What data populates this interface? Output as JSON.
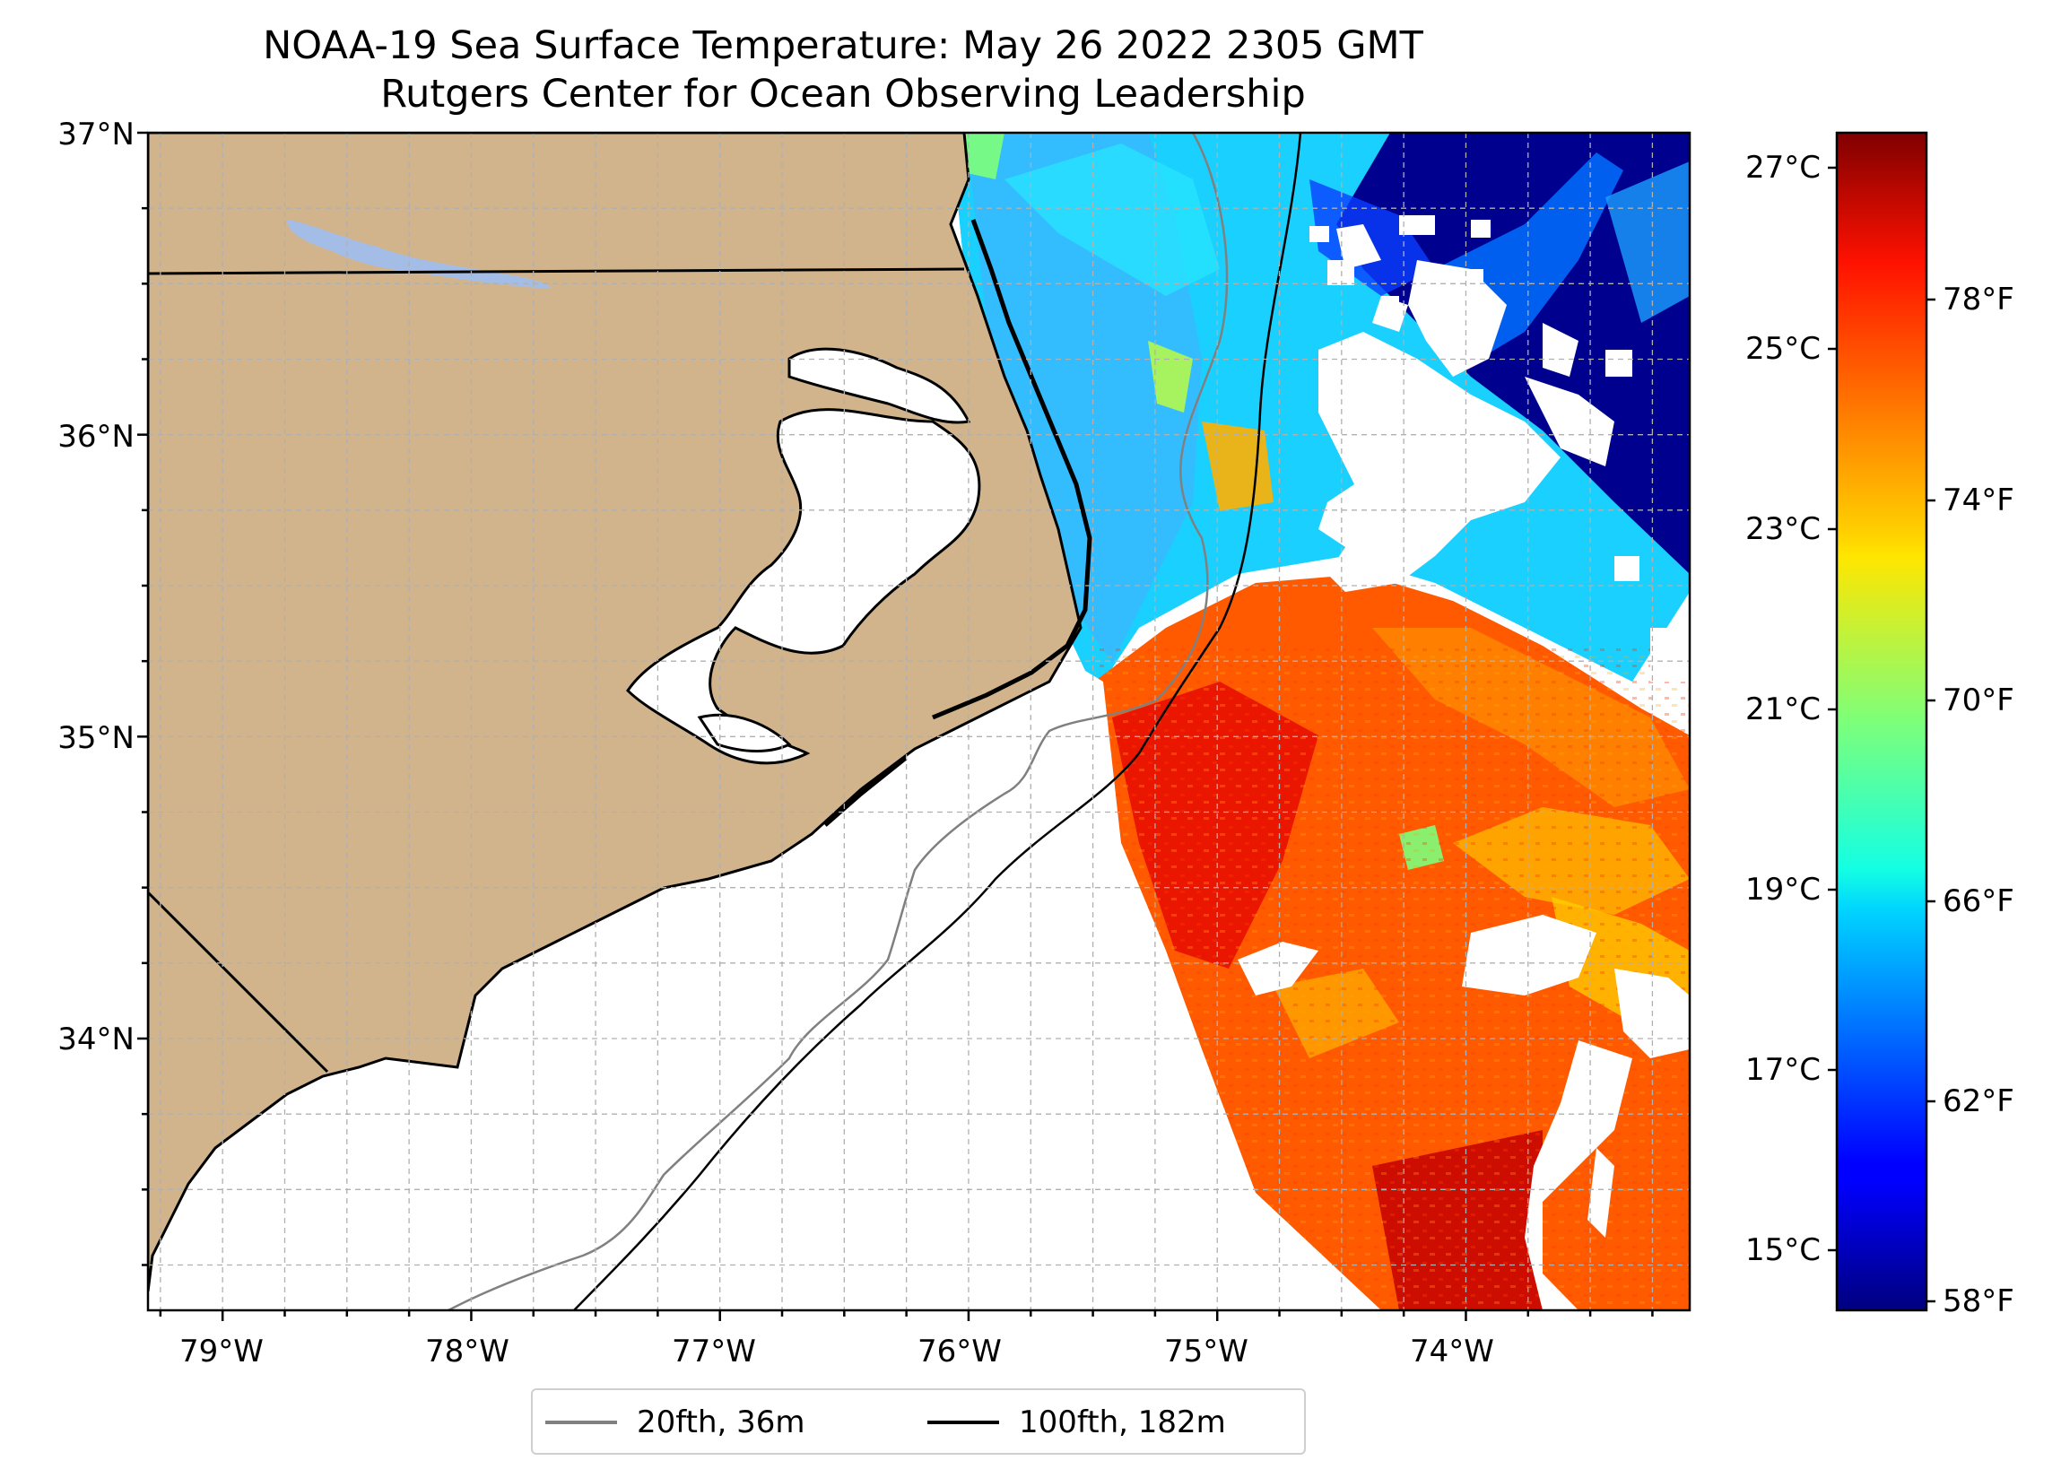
{
  "title": {
    "line1": "NOAA-19 Sea Surface Temperature: May 26 2022 2305 GMT",
    "line2": "Rutgers Center for Ocean Observing Leadership"
  },
  "map": {
    "lat_labels": [
      "37°N",
      "36°N",
      "35°N",
      "34°N"
    ],
    "lon_labels": [
      "79°W",
      "78°W",
      "77°W",
      "76°W",
      "75°W",
      "74°W"
    ],
    "extent": {
      "lon": [
        -79.3,
        -73.1
      ],
      "lat": [
        33.1,
        37.0
      ]
    },
    "colors": {
      "land": "#d2b48c",
      "lake": "#a4bde6",
      "coast": "#000000",
      "isobath_20fth": "#808080",
      "isobath_100fth": "#000000",
      "grid": "#b0b0b0"
    }
  },
  "colorbar": {
    "celsius_labels": [
      "27°C",
      "25°C",
      "23°C",
      "21°C",
      "19°C",
      "17°C",
      "15°C"
    ],
    "fahrenheit_labels": [
      "78°F",
      "74°F",
      "70°F",
      "66°F",
      "62°F",
      "58°F"
    ],
    "colormap": "jet"
  },
  "legend": {
    "items": [
      {
        "label": "20fth, 36m",
        "color": "#808080"
      },
      {
        "label": "100fth, 182m",
        "color": "#000000"
      }
    ]
  }
}
